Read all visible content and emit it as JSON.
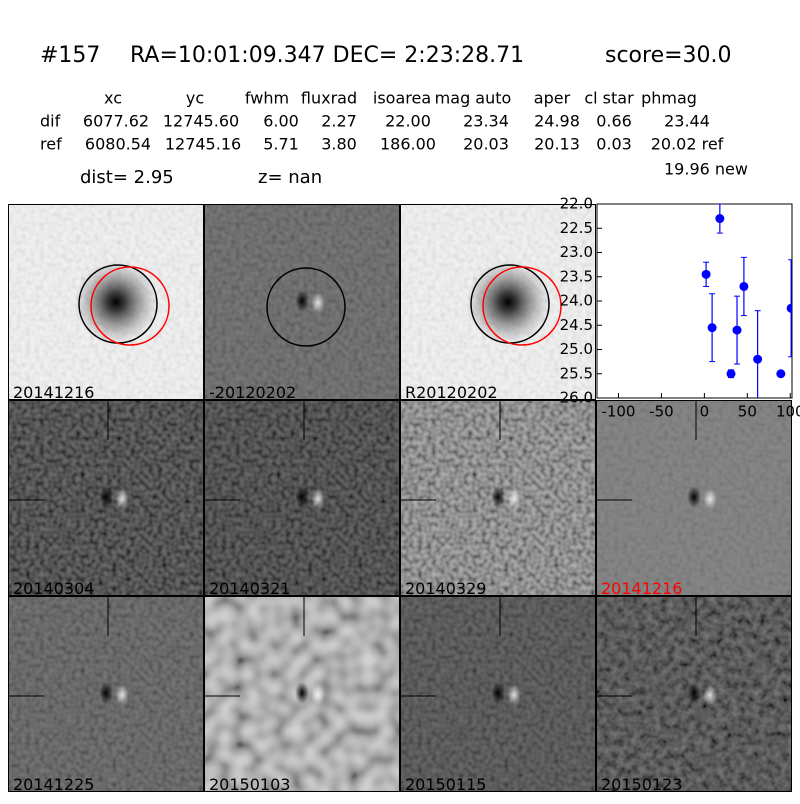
{
  "header": {
    "id": "#157",
    "coords": "RA=10:01:09.347 DEC= 2:23:28.71",
    "score": "score=30.0"
  },
  "table": {
    "columns": [
      "xc",
      "yc",
      "fwhm",
      "fluxrad",
      "isoarea",
      "mag auto",
      "aper",
      "cl star",
      "phmag"
    ],
    "rows": [
      [
        "dif",
        "6077.62",
        "12745.60",
        "6.00",
        "2.27",
        "22.00",
        "23.34",
        "24.98",
        "0.66",
        "23.44"
      ],
      [
        "ref",
        "6080.54",
        "12745.16",
        "5.71",
        "3.80",
        "186.00",
        "20.03",
        "20.13",
        "0.03",
        "20.02 ref"
      ]
    ],
    "extra": "19.96 new",
    "dist": "dist=  2.95",
    "z": "z=   nan"
  },
  "stamps": [
    {
      "label": "20141216",
      "label_color": "#000000"
    },
    {
      "label": "-20120202",
      "label_color": "#000000"
    },
    {
      "label": "R20120202",
      "label_color": "#000000"
    },
    {
      "label": "20140304",
      "label_color": "#000000"
    },
    {
      "label": "20140321",
      "label_color": "#000000"
    },
    {
      "label": "20140329",
      "label_color": "#000000"
    },
    {
      "label": "20141216",
      "label_color": "#ff0000"
    },
    {
      "label": "20141225",
      "label_color": "#000000"
    },
    {
      "label": "20150103",
      "label_color": "#000000"
    },
    {
      "label": "20150115",
      "label_color": "#000000"
    },
    {
      "label": "20150123",
      "label_color": "#000000"
    }
  ],
  "chart_data": {
    "type": "scatter",
    "color": "#0000ff",
    "x": [
      2,
      9,
      18,
      31,
      38,
      46,
      62,
      89,
      101
    ],
    "values": [
      23.45,
      24.55,
      22.3,
      25.5,
      24.6,
      23.7,
      25.2,
      25.5,
      24.15
    ],
    "errors": [
      0.25,
      0.7,
      0.3,
      0.08,
      0.7,
      0.6,
      1.0,
      0.05,
      1.0
    ],
    "xlim": [
      -125,
      102
    ],
    "ylim": [
      26.0,
      22.0
    ],
    "xticks": [
      -100,
      -50,
      0,
      50,
      100
    ],
    "yticks": [
      {
        "value": 22.0,
        "label": "22.0"
      },
      {
        "value": 22.5,
        "label": "22.5"
      },
      {
        "value": 23.0,
        "label": "23.0"
      },
      {
        "value": 23.5,
        "label": "23.5"
      },
      {
        "value": 24.0,
        "label": "24.0"
      },
      {
        "value": 24.5,
        "label": "24.5"
      },
      {
        "value": 25.0,
        "label": "25.0"
      },
      {
        "value": 25.5,
        "label": "25.5"
      },
      {
        "value": 26.0,
        "label": "26.0"
      }
    ]
  }
}
